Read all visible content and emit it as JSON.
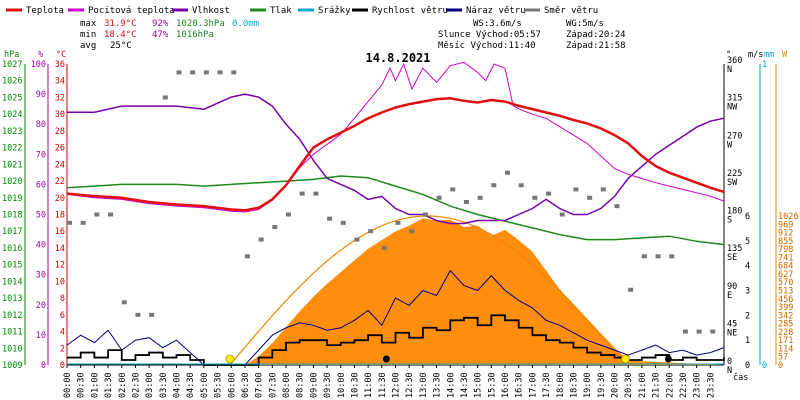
{
  "colors": {
    "temp": "#e01010",
    "feels": "#cc00cc",
    "humidity": "#7a00aa",
    "pressure": "#1f8a1f",
    "rain": "#00aacc",
    "wind": "#000000",
    "gust": "#000080",
    "direction": "#777777",
    "solar_fill": "#ff8800",
    "solar_curve": "#ee8800",
    "hpa_axis": "#008800",
    "pct_axis": "#aa00aa",
    "temp_axis": "#cc0000"
  },
  "legend": [
    {
      "label": "Teplota",
      "color": "#e01010",
      "key": "temp"
    },
    {
      "label": "Pocitová teplota",
      "color": "#cc00cc",
      "key": "feels"
    },
    {
      "label": "Vlhkost",
      "color": "#7a00aa",
      "key": "humidity"
    },
    {
      "label": "Tlak",
      "color": "#1f8a1f",
      "key": "pressure"
    },
    {
      "label": "Srážky",
      "color": "#00aacc",
      "key": "rain"
    },
    {
      "label": "Rychlost větru",
      "color": "#000000",
      "key": "wind"
    },
    {
      "label": "Náraz větru",
      "color": "#000080",
      "key": "gust"
    },
    {
      "label": "Směr větru",
      "color": "#777777",
      "key": "direction"
    }
  ],
  "stats": {
    "max_label": "max",
    "min_label": "min",
    "avg_label": "avg",
    "max_temp": "31.9°C",
    "max_hum": "92%",
    "max_press": "1020.3hPa",
    "max_rain": "0.0mm",
    "min_temp": "18.4°C",
    "min_hum": "47%",
    "min_press": "1016hPa",
    "avg_temp": "25°C"
  },
  "info": {
    "ws": "WS:3.6m/s",
    "wg": "WG:5m/s",
    "sun": "Slunce Východ:05:57",
    "sun_set": "Západ:20:24",
    "moon": "Měsíc  Východ:11:40",
    "moon_set": "Západ:21:58"
  },
  "axis_units": {
    "hpa": "hPa",
    "pct": "%",
    "degc": "°C",
    "deg": "°",
    "ms": "m/s",
    "mm": "mm",
    "w": "W",
    "cas": "čas"
  },
  "chart_data": {
    "type": "line",
    "title": "14.8.2021",
    "xlabel": "čas",
    "x_ticks": [
      "00:00",
      "00:30",
      "01:00",
      "01:30",
      "02:00",
      "02:30",
      "03:00",
      "03:30",
      "04:00",
      "04:30",
      "05:00",
      "05:30",
      "06:00",
      "06:30",
      "07:00",
      "07:30",
      "08:00",
      "08:30",
      "09:00",
      "09:30",
      "10:00",
      "10:30",
      "11:00",
      "11:30",
      "12:00",
      "12:30",
      "13:00",
      "13:30",
      "14:00",
      "14:30",
      "15:00",
      "15:30",
      "16:00",
      "16:30",
      "17:00",
      "17:30",
      "18:00",
      "18:30",
      "19:00",
      "19:30",
      "20:00",
      "20:30",
      "21:00",
      "21:30",
      "22:00",
      "22:30",
      "23:00",
      "23:30"
    ],
    "axes": {
      "hpa": {
        "min": 1009,
        "max": 1027,
        "ticks": [
          1009,
          1010,
          1011,
          1012,
          1013,
          1014,
          1015,
          1016,
          1017,
          1018,
          1019,
          1020,
          1021,
          1022,
          1023,
          1024,
          1025,
          1026,
          1027
        ]
      },
      "pct": {
        "min": 0,
        "max": 100,
        "ticks": [
          0,
          10,
          20,
          30,
          40,
          50,
          60,
          70,
          80,
          90,
          100
        ]
      },
      "temp": {
        "min": 0,
        "max": 36,
        "ticks": [
          0,
          2,
          4,
          6,
          8,
          10,
          12,
          14,
          16,
          18,
          20,
          22,
          24,
          26,
          28,
          30,
          32,
          34,
          36
        ]
      },
      "direction": {
        "ticks": [
          "0 N",
          "45 NE",
          "90 E",
          "135 SE",
          "180 S",
          "225 SW",
          "270 W",
          "315 NW",
          "360 N"
        ],
        "values": [
          0,
          45,
          90,
          135,
          180,
          225,
          270,
          315,
          360
        ]
      },
      "ms": {
        "min": 0,
        "max": 6,
        "ticks": [
          0,
          1,
          2,
          3,
          4,
          5,
          6
        ]
      },
      "mm": {
        "min": 0,
        "max": 1,
        "ticks": [
          0,
          1
        ]
      },
      "w": {
        "min": 0,
        "max": 1026,
        "ticks": [
          0,
          57,
          114,
          171,
          228,
          285,
          342,
          399,
          456,
          513,
          570,
          627,
          684,
          741,
          798,
          855,
          912,
          969,
          1026
        ]
      }
    },
    "series": [
      {
        "name": "Teplota",
        "unit": "°C",
        "x": [
          0,
          1,
          2,
          3,
          4,
          5,
          6,
          6.5,
          7,
          7.5,
          8,
          8.5,
          9,
          9.5,
          10,
          10.5,
          11,
          11.5,
          12,
          12.5,
          13,
          13.5,
          14,
          14.5,
          15,
          15.5,
          16,
          16.5,
          17,
          17.5,
          18,
          18.5,
          19,
          19.5,
          20,
          20.5,
          21,
          21.5,
          22,
          22.5,
          23,
          23.5,
          24
        ],
        "values": [
          20.5,
          20.2,
          20,
          19.5,
          19.2,
          19.0,
          18.6,
          18.5,
          18.8,
          19.8,
          21.5,
          23.8,
          26.0,
          27.0,
          27.8,
          28.6,
          29.5,
          30.2,
          30.8,
          31.2,
          31.5,
          31.8,
          31.9,
          31.6,
          31.4,
          31.7,
          31.5,
          31.0,
          30.6,
          30.2,
          29.8,
          29.3,
          28.9,
          28.3,
          27.5,
          26.5,
          25.0,
          23.8,
          23.0,
          22.4,
          21.8,
          21.2,
          20.7
        ]
      },
      {
        "name": "Pocitová teplota",
        "unit": "°C",
        "x": [
          0,
          1,
          2,
          3,
          4,
          5,
          6,
          6.5,
          7,
          7.5,
          8,
          8.5,
          9,
          9.5,
          10,
          10.5,
          11,
          11.5,
          11.8,
          12,
          12.3,
          12.6,
          13,
          13.5,
          14,
          14.5,
          15,
          15.3,
          15.6,
          16,
          16.3,
          16.6,
          17,
          17.5,
          18,
          18.5,
          19,
          19.5,
          20,
          20.5,
          21,
          21.5,
          22,
          22.5,
          23,
          23.5,
          24
        ],
        "values": [
          20.4,
          20.0,
          19.8,
          19.3,
          19.0,
          18.8,
          18.4,
          18.3,
          18.6,
          19.7,
          21.4,
          23.6,
          25.2,
          26.4,
          27.6,
          29.5,
          31.5,
          33.5,
          35.5,
          34.0,
          36.0,
          33.0,
          35.5,
          33.8,
          35.8,
          36.2,
          35.0,
          34.0,
          36.0,
          35.5,
          31.0,
          30.5,
          30.0,
          29.5,
          28.5,
          27.5,
          26.5,
          25.0,
          23.5,
          22.8,
          22.3,
          21.8,
          21.4,
          21.0,
          20.6,
          20.2,
          19.6
        ]
      },
      {
        "name": "Vlhkost",
        "unit": "%",
        "x": [
          0,
          1,
          2,
          3,
          4,
          5,
          6,
          6.5,
          7,
          7.5,
          8,
          8.5,
          9,
          9.5,
          10,
          10.5,
          11,
          11.5,
          12,
          12.5,
          13,
          13.5,
          14,
          14.5,
          15,
          15.5,
          16,
          16.5,
          17,
          17.5,
          18,
          18.5,
          19,
          19.5,
          20,
          20.5,
          21,
          21.5,
          22,
          22.5,
          23,
          23.5,
          24
        ],
        "values": [
          84,
          84,
          86,
          86,
          86,
          85,
          89,
          90,
          89,
          86,
          80,
          75,
          68,
          62,
          60,
          58,
          55,
          56,
          52,
          50,
          50,
          48,
          47,
          47,
          48,
          48,
          48,
          50,
          52,
          55,
          52,
          50,
          50,
          52,
          56,
          62,
          66,
          70,
          73,
          76,
          79,
          81,
          82
        ]
      },
      {
        "name": "Tlak",
        "unit": "hPa",
        "x": [
          0,
          1,
          2,
          3,
          4,
          5,
          6,
          7,
          8,
          9,
          10,
          11,
          12,
          13,
          14,
          15,
          16,
          17,
          18,
          19,
          20,
          21,
          22,
          23,
          24
        ],
        "values": [
          1019.6,
          1019.7,
          1019.8,
          1019.8,
          1019.8,
          1019.7,
          1019.8,
          1019.9,
          1020.0,
          1020.1,
          1020.3,
          1020.2,
          1019.7,
          1019.2,
          1018.5,
          1018.0,
          1017.6,
          1017.2,
          1016.8,
          1016.5,
          1016.5,
          1016.6,
          1016.7,
          1016.4,
          1016.2
        ]
      },
      {
        "name": "Srážky",
        "unit": "mm",
        "x": [
          0,
          24
        ],
        "values": [
          0,
          0
        ]
      },
      {
        "name": "Rychlost větru",
        "unit": "m/s",
        "x": [
          0,
          0.5,
          1,
          1.5,
          2,
          2.5,
          3,
          3.5,
          4,
          4.5,
          5,
          5.5,
          6,
          6.5,
          7,
          7.5,
          8,
          8.5,
          9,
          9.5,
          10,
          10.5,
          11,
          11.5,
          12,
          12.5,
          13,
          13.5,
          14,
          14.5,
          15,
          15.5,
          16,
          16.5,
          17,
          17.5,
          18,
          18.5,
          19,
          19.5,
          20,
          20.5,
          21,
          21.5,
          22,
          22.5,
          23,
          23.5,
          24
        ],
        "values": [
          0.3,
          0.5,
          0.3,
          0.6,
          0.2,
          0.4,
          0.5,
          0.3,
          0.4,
          0.2,
          0,
          0,
          0,
          0,
          0.3,
          0.6,
          0.9,
          1.0,
          1.0,
          0.8,
          0.9,
          1.0,
          1.2,
          0.9,
          1.3,
          1.1,
          1.5,
          1.4,
          1.8,
          1.9,
          1.6,
          2.0,
          1.8,
          1.5,
          1.2,
          1.0,
          0.9,
          0.7,
          0.5,
          0.4,
          0.3,
          0.2,
          0.3,
          0.4,
          0.2,
          0.3,
          0.2,
          0.2,
          0.3
        ]
      },
      {
        "name": "Náraz větru",
        "unit": "m/s",
        "x": [
          0,
          0.5,
          1,
          1.5,
          2,
          2.5,
          3,
          3.5,
          4,
          4.5,
          5,
          5.5,
          6,
          6.5,
          7,
          7.5,
          8,
          8.5,
          9,
          9.5,
          10,
          10.5,
          11,
          11.5,
          12,
          12.5,
          13,
          13.5,
          14,
          14.5,
          15,
          15.5,
          16,
          16.5,
          17,
          17.5,
          18,
          18.5,
          19,
          19.5,
          20,
          20.5,
          21,
          21.5,
          22,
          22.5,
          23,
          23.5,
          24
        ],
        "values": [
          0.8,
          1.2,
          0.9,
          1.4,
          0.6,
          1.0,
          1.1,
          0.7,
          1.0,
          0.5,
          0,
          0,
          0,
          0,
          0.6,
          1.2,
          1.5,
          1.7,
          1.6,
          1.4,
          1.5,
          1.8,
          2.2,
          1.6,
          2.7,
          2.4,
          3.0,
          2.8,
          3.8,
          3.2,
          3.0,
          3.6,
          3.0,
          2.6,
          2.3,
          1.8,
          1.6,
          1.3,
          1.0,
          0.8,
          0.6,
          0.4,
          0.6,
          0.8,
          0.5,
          0.6,
          0.4,
          0.5,
          0.7
        ]
      },
      {
        "name": "Směr větru",
        "unit": "°",
        "x": [
          0,
          0.5,
          1,
          1.5,
          2,
          2.5,
          3,
          3.5,
          4,
          4.5,
          5,
          5.5,
          6,
          6.5,
          7,
          7.5,
          8,
          8.5,
          9,
          9.5,
          10,
          10.5,
          11,
          11.5,
          12,
          12.5,
          13,
          13.5,
          14,
          14.5,
          15,
          15.5,
          16,
          16.5,
          17,
          17.5,
          18,
          18.5,
          19,
          19.5,
          20,
          20.5,
          21,
          21.5,
          22,
          22.5,
          23,
          23.5,
          24
        ],
        "values": [
          170,
          170,
          180,
          180,
          75,
          60,
          60,
          320,
          350,
          350,
          350,
          350,
          350,
          130,
          150,
          165,
          180,
          205,
          205,
          175,
          170,
          150,
          160,
          140,
          170,
          160,
          180,
          200,
          210,
          195,
          200,
          215,
          230,
          215,
          200,
          205,
          180,
          210,
          200,
          210,
          190,
          90,
          130,
          130,
          130,
          40,
          40,
          40,
          40
        ]
      },
      {
        "name": "Sluneční záření",
        "unit": "W",
        "x": [
          0,
          6.5,
          7,
          7.5,
          8,
          8.5,
          9,
          9.5,
          10,
          10.5,
          11,
          11.5,
          12,
          12.5,
          13,
          13.5,
          14,
          14.5,
          15,
          15.5,
          16,
          16.5,
          17,
          17.5,
          18,
          18.5,
          19,
          19.5,
          20,
          20.5,
          24
        ],
        "values": [
          0,
          0,
          60,
          150,
          260,
          370,
          470,
          560,
          640,
          720,
          800,
          860,
          920,
          960,
          1010,
          995,
          1000,
          950,
          960,
          890,
          930,
          860,
          780,
          650,
          520,
          420,
          320,
          220,
          120,
          30,
          0
        ]
      }
    ],
    "events": {
      "sunrise": "05:57",
      "sunset": "20:24",
      "moonrise": "11:40",
      "moonset": "21:58"
    },
    "grid": false,
    "legend_position": "top"
  }
}
